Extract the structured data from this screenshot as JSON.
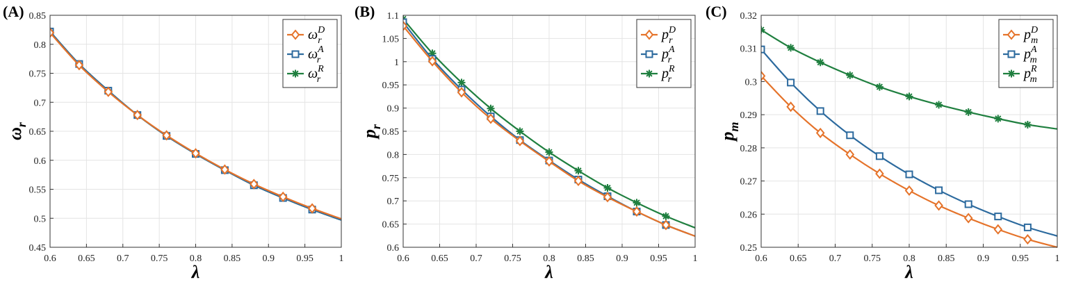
{
  "colors": {
    "D": "#E5732A",
    "A": "#2C6A9E",
    "R": "#1F7F3F"
  },
  "chart_data": [
    {
      "type": "line",
      "panel_label": "(A)",
      "xlabel": "λ",
      "ylabel": "ω",
      "ylabel_sub": "r",
      "xlim": [
        0.6,
        1.0
      ],
      "ylim": [
        0.45,
        0.85
      ],
      "xticks": [
        "0.6",
        "0.65",
        "0.7",
        "0.75",
        "0.8",
        "0.85",
        "0.9",
        "0.95",
        "1"
      ],
      "yticks": [
        "0.45",
        "0.5",
        "0.55",
        "0.6",
        "0.65",
        "0.7",
        "0.75",
        "0.8",
        "0.85"
      ],
      "grid": true,
      "legend_position": "top-right",
      "x": [
        0.6,
        0.64,
        0.68,
        0.72,
        0.76,
        0.8,
        0.84,
        0.88,
        0.92,
        0.96,
        1.0
      ],
      "series": [
        {
          "key": "D",
          "base": "ω",
          "sub": "r",
          "sup": "D",
          "marker": "diamond",
          "values": [
            0.82,
            0.764,
            0.718,
            0.678,
            0.643,
            0.612,
            0.584,
            0.559,
            0.537,
            0.517,
            0.499
          ]
        },
        {
          "key": "A",
          "base": "ω",
          "sub": "r",
          "sup": "A",
          "marker": "square",
          "values": [
            0.822,
            0.766,
            0.72,
            0.678,
            0.642,
            0.611,
            0.583,
            0.557,
            0.535,
            0.515,
            0.497
          ]
        },
        {
          "key": "R",
          "base": "ω",
          "sub": "r",
          "sup": "R",
          "marker": "asterisk",
          "values": [
            0.822,
            0.766,
            0.72,
            0.678,
            0.642,
            0.611,
            0.583,
            0.557,
            0.535,
            0.515,
            0.497
          ]
        }
      ]
    },
    {
      "type": "line",
      "panel_label": "(B)",
      "xlabel": "λ",
      "ylabel": "p",
      "ylabel_sub": "r",
      "xlim": [
        0.6,
        1.0
      ],
      "ylim": [
        0.6,
        1.1
      ],
      "xticks": [
        "0.6",
        "0.65",
        "0.7",
        "0.75",
        "0.8",
        "0.85",
        "0.9",
        "0.95",
        "1"
      ],
      "yticks": [
        "0.6",
        "0.65",
        "0.7",
        "0.75",
        "0.8",
        "0.85",
        "0.9",
        "0.95",
        "1",
        "1.05",
        "1.1"
      ],
      "grid": true,
      "legend_position": "top-right",
      "x": [
        0.6,
        0.64,
        0.68,
        0.72,
        0.76,
        0.8,
        0.84,
        0.88,
        0.92,
        0.96,
        1.0
      ],
      "series": [
        {
          "key": "D",
          "base": "p",
          "sub": "r",
          "sup": "D",
          "marker": "diamond",
          "values": [
            1.077,
            1.001,
            0.934,
            0.877,
            0.829,
            0.785,
            0.743,
            0.708,
            0.677,
            0.648,
            0.624
          ]
        },
        {
          "key": "A",
          "base": "p",
          "sub": "r",
          "sup": "A",
          "marker": "square",
          "values": [
            1.085,
            1.006,
            0.94,
            0.882,
            0.831,
            0.787,
            0.746,
            0.71,
            0.677,
            0.648,
            0.624
          ]
        },
        {
          "key": "R",
          "base": "p",
          "sub": "r",
          "sup": "R",
          "marker": "asterisk",
          "values": [
            1.092,
            1.018,
            0.955,
            0.899,
            0.85,
            0.805,
            0.765,
            0.728,
            0.696,
            0.667,
            0.642
          ]
        }
      ]
    },
    {
      "type": "line",
      "panel_label": "(C)",
      "xlabel": "λ",
      "ylabel": "p",
      "ylabel_sub": "m",
      "xlim": [
        0.6,
        1.0
      ],
      "ylim": [
        0.25,
        0.32
      ],
      "xticks": [
        "0.6",
        "0.65",
        "0.7",
        "0.75",
        "0.8",
        "0.85",
        "0.9",
        "0.95",
        "1"
      ],
      "yticks": [
        "0.25",
        "0.26",
        "0.27",
        "0.28",
        "0.29",
        "0.3",
        "0.31",
        "0.32"
      ],
      "grid": true,
      "legend_position": "top-right",
      "x": [
        0.6,
        0.64,
        0.68,
        0.72,
        0.76,
        0.8,
        0.84,
        0.88,
        0.92,
        0.96,
        1.0
      ],
      "series": [
        {
          "key": "D",
          "base": "p",
          "sub": "m",
          "sup": "D",
          "marker": "diamond",
          "values": [
            0.3017,
            0.2924,
            0.2845,
            0.278,
            0.2722,
            0.2671,
            0.2626,
            0.2588,
            0.2554,
            0.2524,
            0.25
          ]
        },
        {
          "key": "A",
          "base": "p",
          "sub": "m",
          "sup": "A",
          "marker": "square",
          "values": [
            0.3097,
            0.2997,
            0.2911,
            0.2838,
            0.2775,
            0.272,
            0.2672,
            0.263,
            0.2593,
            0.256,
            0.2534
          ]
        },
        {
          "key": "R",
          "base": "p",
          "sub": "m",
          "sup": "R",
          "marker": "asterisk",
          "values": [
            0.3156,
            0.3102,
            0.3058,
            0.3019,
            0.2984,
            0.2955,
            0.293,
            0.2908,
            0.2888,
            0.287,
            0.2857
          ]
        }
      ]
    }
  ]
}
